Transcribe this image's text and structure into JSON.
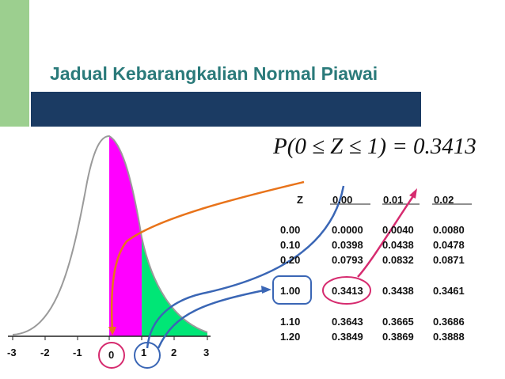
{
  "slide": {
    "title": "Jadual Kebarangkalian Normal Piawai",
    "formula": "P(0 ≤ Z ≤ 1) = 0.3413"
  },
  "axis": {
    "ticks": [
      "-3",
      "-2",
      "-1",
      "0",
      "1",
      "2",
      "3"
    ]
  },
  "table": {
    "headers": [
      "Z",
      "0.00",
      "0.01",
      "0.02"
    ],
    "rows": [
      [
        "0.00",
        "0.0000",
        "0.0040",
        "0.0080"
      ],
      [
        "0.10",
        "0.0398",
        "0.0438",
        "0.0478"
      ],
      [
        "0.20",
        "0.0793",
        "0.0832",
        "0.0871"
      ],
      [
        "1.00",
        "0.3413",
        "0.3438",
        "0.3461"
      ],
      [
        "1.10",
        "0.3643",
        "0.3665",
        "0.3686"
      ],
      [
        "1.20",
        "0.3849",
        "0.3869",
        "0.3888"
      ]
    ]
  },
  "colors": {
    "title": "#2a7a7a",
    "bar": "#1b3b63",
    "decor_green": "#9ccf8f",
    "magenta_area": "#ff00ff",
    "green_area": "#00e676",
    "orange_arrow": "#e8731a",
    "blue_arrow": "#3a66b5",
    "pink_arrow": "#d62b6f"
  }
}
